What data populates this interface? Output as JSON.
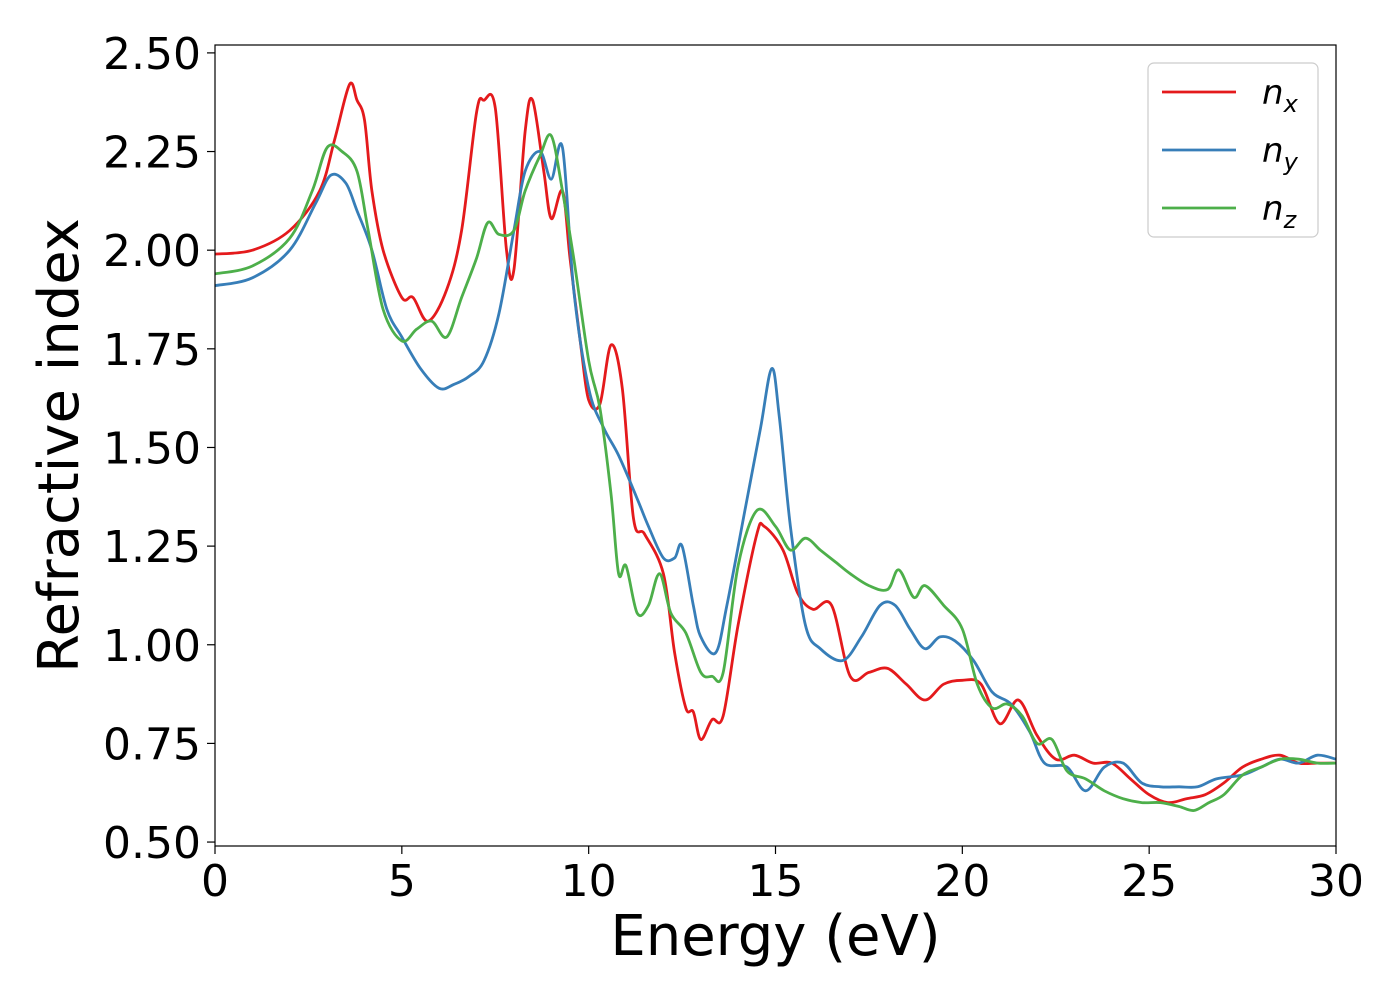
{
  "chart_data": {
    "type": "line",
    "xlabel": "Energy (eV)",
    "ylabel": "Refractive index",
    "xlim": [
      0,
      30
    ],
    "ylim": [
      0.49,
      2.52
    ],
    "xticks": [
      0,
      5,
      10,
      15,
      20,
      25,
      30
    ],
    "xtick_labels": [
      "0",
      "5",
      "10",
      "15",
      "20",
      "25",
      "30"
    ],
    "yticks": [
      0.5,
      0.75,
      1.0,
      1.25,
      1.5,
      1.75,
      2.0,
      2.25,
      2.5
    ],
    "ytick_labels": [
      "0.50",
      "0.75",
      "1.00",
      "1.25",
      "1.50",
      "1.75",
      "2.00",
      "2.25",
      "2.50"
    ],
    "grid": false,
    "legend_position": "top-right",
    "series": [
      {
        "name": "n",
        "subscript": "x",
        "color": "#e41a1c",
        "points": [
          [
            0,
            1.99
          ],
          [
            1,
            2.0
          ],
          [
            2,
            2.05
          ],
          [
            2.8,
            2.15
          ],
          [
            3.2,
            2.28
          ],
          [
            3.6,
            2.42
          ],
          [
            3.8,
            2.38
          ],
          [
            4.0,
            2.33
          ],
          [
            4.2,
            2.15
          ],
          [
            4.5,
            2.0
          ],
          [
            5.0,
            1.88
          ],
          [
            5.3,
            1.88
          ],
          [
            5.7,
            1.82
          ],
          [
            6.2,
            1.9
          ],
          [
            6.6,
            2.05
          ],
          [
            7.0,
            2.35
          ],
          [
            7.2,
            2.38
          ],
          [
            7.5,
            2.36
          ],
          [
            7.8,
            2.0
          ],
          [
            8.0,
            1.95
          ],
          [
            8.3,
            2.3
          ],
          [
            8.5,
            2.38
          ],
          [
            8.8,
            2.2
          ],
          [
            9.0,
            2.08
          ],
          [
            9.3,
            2.15
          ],
          [
            9.5,
            1.98
          ],
          [
            9.8,
            1.75
          ],
          [
            10.0,
            1.62
          ],
          [
            10.3,
            1.61
          ],
          [
            10.6,
            1.76
          ],
          [
            10.9,
            1.65
          ],
          [
            11.2,
            1.32
          ],
          [
            11.5,
            1.28
          ],
          [
            12.0,
            1.18
          ],
          [
            12.3,
            0.98
          ],
          [
            12.6,
            0.84
          ],
          [
            12.8,
            0.83
          ],
          [
            13.0,
            0.76
          ],
          [
            13.3,
            0.81
          ],
          [
            13.6,
            0.82
          ],
          [
            14.0,
            1.05
          ],
          [
            14.5,
            1.28
          ],
          [
            14.7,
            1.3
          ],
          [
            15.2,
            1.24
          ],
          [
            15.6,
            1.13
          ],
          [
            16.0,
            1.09
          ],
          [
            16.5,
            1.1
          ],
          [
            17.0,
            0.92
          ],
          [
            17.5,
            0.93
          ],
          [
            18.0,
            0.94
          ],
          [
            18.5,
            0.9
          ],
          [
            19.0,
            0.86
          ],
          [
            19.5,
            0.9
          ],
          [
            20.0,
            0.91
          ],
          [
            20.5,
            0.9
          ],
          [
            21.0,
            0.8
          ],
          [
            21.5,
            0.86
          ],
          [
            22.0,
            0.77
          ],
          [
            22.5,
            0.71
          ],
          [
            23.0,
            0.72
          ],
          [
            23.5,
            0.7
          ],
          [
            24.0,
            0.7
          ],
          [
            24.5,
            0.66
          ],
          [
            25.0,
            0.62
          ],
          [
            25.5,
            0.6
          ],
          [
            26.0,
            0.61
          ],
          [
            26.5,
            0.62
          ],
          [
            27.0,
            0.65
          ],
          [
            27.5,
            0.69
          ],
          [
            28.0,
            0.71
          ],
          [
            28.5,
            0.72
          ],
          [
            29.0,
            0.7
          ],
          [
            29.5,
            0.7
          ],
          [
            30.0,
            0.7
          ]
        ]
      },
      {
        "name": "n",
        "subscript": "y",
        "color": "#377eb8",
        "points": [
          [
            0,
            1.91
          ],
          [
            1,
            1.93
          ],
          [
            2,
            2.0
          ],
          [
            2.7,
            2.12
          ],
          [
            3.1,
            2.19
          ],
          [
            3.5,
            2.17
          ],
          [
            3.8,
            2.1
          ],
          [
            4.2,
            2.0
          ],
          [
            4.6,
            1.85
          ],
          [
            5.0,
            1.78
          ],
          [
            5.5,
            1.7
          ],
          [
            6.0,
            1.65
          ],
          [
            6.4,
            1.66
          ],
          [
            6.8,
            1.68
          ],
          [
            7.2,
            1.72
          ],
          [
            7.6,
            1.84
          ],
          [
            8.0,
            2.05
          ],
          [
            8.3,
            2.2
          ],
          [
            8.7,
            2.25
          ],
          [
            9.0,
            2.18
          ],
          [
            9.3,
            2.26
          ],
          [
            9.6,
            1.9
          ],
          [
            10.0,
            1.65
          ],
          [
            10.4,
            1.55
          ],
          [
            10.8,
            1.48
          ],
          [
            11.3,
            1.37
          ],
          [
            11.6,
            1.3
          ],
          [
            12.0,
            1.22
          ],
          [
            12.3,
            1.22
          ],
          [
            12.5,
            1.25
          ],
          [
            12.8,
            1.1
          ],
          [
            13.0,
            1.02
          ],
          [
            13.4,
            0.98
          ],
          [
            13.7,
            1.1
          ],
          [
            14.2,
            1.35
          ],
          [
            14.6,
            1.55
          ],
          [
            14.9,
            1.7
          ],
          [
            15.1,
            1.58
          ],
          [
            15.4,
            1.3
          ],
          [
            15.8,
            1.05
          ],
          [
            16.2,
            0.99
          ],
          [
            16.8,
            0.96
          ],
          [
            17.3,
            1.02
          ],
          [
            17.8,
            1.1
          ],
          [
            18.2,
            1.1
          ],
          [
            18.6,
            1.04
          ],
          [
            19.0,
            0.99
          ],
          [
            19.4,
            1.02
          ],
          [
            19.8,
            1.01
          ],
          [
            20.3,
            0.96
          ],
          [
            20.8,
            0.88
          ],
          [
            21.3,
            0.85
          ],
          [
            21.8,
            0.78
          ],
          [
            22.2,
            0.7
          ],
          [
            22.8,
            0.69
          ],
          [
            23.3,
            0.63
          ],
          [
            23.8,
            0.69
          ],
          [
            24.3,
            0.7
          ],
          [
            24.8,
            0.65
          ],
          [
            25.3,
            0.64
          ],
          [
            25.8,
            0.64
          ],
          [
            26.3,
            0.64
          ],
          [
            26.8,
            0.66
          ],
          [
            27.5,
            0.67
          ],
          [
            28.0,
            0.69
          ],
          [
            28.5,
            0.71
          ],
          [
            29.0,
            0.7
          ],
          [
            29.5,
            0.72
          ],
          [
            30.0,
            0.71
          ]
        ]
      },
      {
        "name": "n",
        "subscript": "z",
        "color": "#4daf4a",
        "points": [
          [
            0,
            1.94
          ],
          [
            1,
            1.96
          ],
          [
            2,
            2.03
          ],
          [
            2.6,
            2.15
          ],
          [
            3.0,
            2.26
          ],
          [
            3.4,
            2.25
          ],
          [
            3.8,
            2.2
          ],
          [
            4.1,
            2.05
          ],
          [
            4.5,
            1.85
          ],
          [
            5.0,
            1.77
          ],
          [
            5.4,
            1.8
          ],
          [
            5.8,
            1.82
          ],
          [
            6.2,
            1.78
          ],
          [
            6.6,
            1.88
          ],
          [
            7.0,
            1.98
          ],
          [
            7.3,
            2.07
          ],
          [
            7.6,
            2.04
          ],
          [
            8.0,
            2.05
          ],
          [
            8.3,
            2.15
          ],
          [
            8.7,
            2.24
          ],
          [
            9.0,
            2.29
          ],
          [
            9.3,
            2.15
          ],
          [
            9.6,
            1.98
          ],
          [
            10.0,
            1.72
          ],
          [
            10.3,
            1.6
          ],
          [
            10.6,
            1.38
          ],
          [
            10.8,
            1.18
          ],
          [
            11.0,
            1.2
          ],
          [
            11.3,
            1.08
          ],
          [
            11.6,
            1.1
          ],
          [
            11.9,
            1.18
          ],
          [
            12.2,
            1.08
          ],
          [
            12.6,
            1.03
          ],
          [
            13.0,
            0.93
          ],
          [
            13.3,
            0.92
          ],
          [
            13.6,
            0.93
          ],
          [
            14.0,
            1.2
          ],
          [
            14.5,
            1.34
          ],
          [
            15.0,
            1.3
          ],
          [
            15.4,
            1.24
          ],
          [
            15.8,
            1.27
          ],
          [
            16.2,
            1.24
          ],
          [
            16.6,
            1.21
          ],
          [
            17.0,
            1.18
          ],
          [
            17.5,
            1.15
          ],
          [
            18.0,
            1.14
          ],
          [
            18.3,
            1.19
          ],
          [
            18.7,
            1.12
          ],
          [
            19.0,
            1.15
          ],
          [
            19.5,
            1.1
          ],
          [
            20.0,
            1.04
          ],
          [
            20.4,
            0.9
          ],
          [
            20.8,
            0.84
          ],
          [
            21.2,
            0.85
          ],
          [
            21.6,
            0.82
          ],
          [
            22.0,
            0.75
          ],
          [
            22.4,
            0.76
          ],
          [
            22.8,
            0.68
          ],
          [
            23.3,
            0.66
          ],
          [
            23.8,
            0.63
          ],
          [
            24.3,
            0.61
          ],
          [
            24.8,
            0.6
          ],
          [
            25.3,
            0.6
          ],
          [
            25.8,
            0.59
          ],
          [
            26.2,
            0.58
          ],
          [
            26.6,
            0.6
          ],
          [
            27.0,
            0.62
          ],
          [
            27.5,
            0.67
          ],
          [
            28.0,
            0.69
          ],
          [
            28.5,
            0.71
          ],
          [
            29.0,
            0.71
          ],
          [
            29.5,
            0.7
          ],
          [
            30.0,
            0.7
          ]
        ]
      }
    ]
  }
}
